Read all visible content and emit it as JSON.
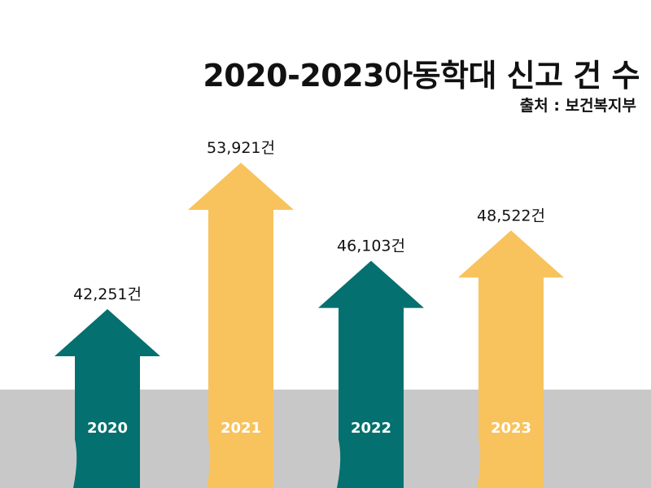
{
  "title": "2020-2023아동학대 신고 건 수",
  "source": "출처 : 보건복지부",
  "colors": {
    "teal": "#04706f",
    "yellow": "#f8c35d",
    "ground": "#c8c8c8",
    "year_text": "#ffffff",
    "value_text": "#111111"
  },
  "chart_data": {
    "type": "bar",
    "title": "2020-2023아동학대 신고 건 수",
    "categories": [
      "2020",
      "2021",
      "2022",
      "2023"
    ],
    "values": [
      42251,
      53921,
      46103,
      48522
    ],
    "value_labels": [
      "42,251건",
      "53,921건",
      "46,103건",
      "48,522건"
    ],
    "unit": "건",
    "series": [
      {
        "name": "",
        "values": [
          42251,
          53921,
          46103,
          48522
        ]
      }
    ],
    "bar_colors": [
      "teal",
      "yellow",
      "teal",
      "yellow"
    ],
    "style": "upward arrows rising from a gray ground band",
    "xlabel": "",
    "ylabel": ""
  }
}
